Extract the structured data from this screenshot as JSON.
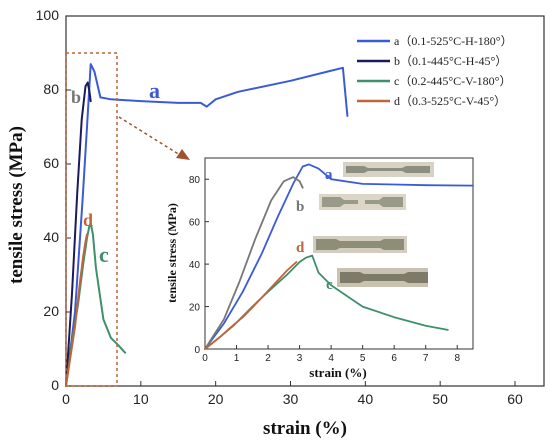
{
  "chart_data": {
    "type": "line",
    "xlabel": "strain (%)",
    "ylabel": "tensile stress (MPa)",
    "xlim": [
      0,
      60
    ],
    "ylim": [
      0,
      100
    ],
    "xticks": [
      "0",
      "10",
      "20",
      "30",
      "40",
      "50",
      "60"
    ],
    "yticks": [
      "0",
      "20",
      "40",
      "60",
      "80",
      "100"
    ],
    "legend_position": "top-right",
    "series": [
      {
        "label": "a",
        "name": "（0.1-525°C-H-180°）",
        "color": "#3b5bd6",
        "x": [
          0,
          1.2,
          2.2,
          2.8,
          3.3,
          3.8,
          4.6,
          6,
          10,
          15,
          18,
          18.8,
          20,
          23,
          30,
          35,
          37,
          37.6
        ],
        "y": [
          0,
          20,
          50,
          70,
          87,
          85,
          78,
          77.5,
          77,
          76.5,
          76.5,
          75.5,
          77.5,
          79.5,
          82.5,
          85,
          86,
          73
        ]
      },
      {
        "label": "b",
        "name": "（0.1-445°C-H-45°）",
        "color": "#1a1a5e",
        "x": [
          0,
          0.8,
          1.5,
          2.1,
          2.6,
          2.9,
          3.1,
          3.3
        ],
        "y": [
          0,
          25,
          52,
          72,
          81,
          82,
          80,
          77
        ]
      },
      {
        "label": "c",
        "name": "（0.2-445°C-V-180°）",
        "color": "#3f8f6a",
        "x": [
          0,
          0.8,
          1.6,
          2.3,
          2.8,
          3.1,
          3.3,
          3.6,
          4,
          5,
          6,
          7,
          7.9
        ],
        "y": [
          0,
          12,
          22,
          33,
          40,
          43,
          44,
          41,
          32,
          18,
          13,
          11,
          9
        ]
      },
      {
        "label": "d",
        "name": "（0.3-525°C-V-45°）",
        "color": "#c0643a",
        "x": [
          0,
          0.6,
          1.2,
          1.8,
          2.3,
          2.6,
          2.8
        ],
        "y": [
          0,
          8,
          16,
          27,
          35,
          39,
          41
        ]
      }
    ],
    "inset": {
      "xlabel": "strain (%)",
      "ylabel": "tensile stress (MPa)",
      "xlim": [
        0,
        8.5
      ],
      "ylim": [
        0,
        90
      ],
      "xticks": [
        "0",
        "1",
        "2",
        "3",
        "4",
        "5",
        "6",
        "7",
        "8"
      ],
      "yticks": [
        "0",
        "20",
        "40",
        "60",
        "80"
      ],
      "series": [
        {
          "label": "a",
          "color": "#3b5bd6",
          "x": [
            0,
            0.6,
            1.2,
            1.8,
            2.3,
            2.8,
            3.1,
            3.3,
            3.6,
            4,
            5,
            6,
            7,
            8.5
          ],
          "y": [
            0,
            12,
            27,
            45,
            62,
            78,
            86,
            87,
            85,
            80,
            77.8,
            77.5,
            77.2,
            77
          ]
        },
        {
          "label": "b",
          "color": "#777777",
          "x": [
            0,
            0.6,
            1.1,
            1.6,
            2.1,
            2.5,
            2.8,
            3,
            3.1
          ],
          "y": [
            0,
            14,
            32,
            52,
            70,
            79,
            81,
            79,
            76
          ]
        },
        {
          "label": "c",
          "color": "#3f8f6a",
          "x": [
            0,
            0.5,
            0.9,
            1.5,
            2,
            2.6,
            3,
            3.2,
            3.4,
            3.6,
            4,
            5,
            6,
            7,
            7.7
          ],
          "y": [
            0,
            6,
            11,
            20,
            27,
            35,
            41,
            43,
            44,
            36,
            30,
            20,
            15,
            11,
            9
          ]
        },
        {
          "label": "d",
          "color": "#c0643a",
          "x": [
            0,
            0.5,
            0.8,
            1.2,
            1.6,
            2.1,
            2.6,
            2.9
          ],
          "y": [
            0,
            6,
            10,
            15,
            21,
            29,
            37,
            41
          ]
        }
      ]
    }
  }
}
